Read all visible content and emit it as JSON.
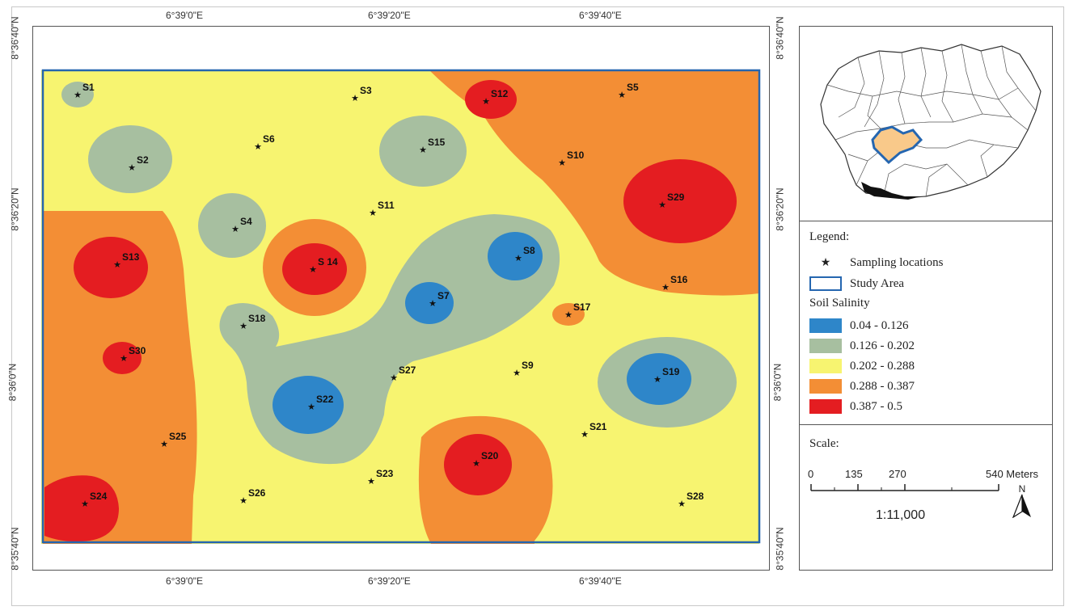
{
  "axes": {
    "top": [
      "6°39'0\"E",
      "6°39'20\"E",
      "6°39'40\"E"
    ],
    "bottom": [
      "6°39'0\"E",
      "6°39'20\"E",
      "6°39'40\"E"
    ],
    "left": [
      "8°36'40\"N",
      "8°36'20\"N",
      "8°36'0\"N",
      "8°35'40\"N"
    ],
    "right": [
      "8°36'40\"N",
      "8°36'20\"N",
      "8°36'0\"N",
      "8°35'40\"N"
    ]
  },
  "colors": {
    "class1": "#2e86c9",
    "class2": "#a7bfa0",
    "class3": "#f7f470",
    "class4": "#f38e35",
    "class5": "#e41d21",
    "study_area": "#2566b0",
    "nigeria_highlight": "#f9c98a"
  },
  "sampling_points": [
    {
      "id": "S1"
    },
    {
      "id": "S2"
    },
    {
      "id": "S3"
    },
    {
      "id": "S4"
    },
    {
      "id": "S5"
    },
    {
      "id": "S6"
    },
    {
      "id": "S7"
    },
    {
      "id": "S8"
    },
    {
      "id": "S9"
    },
    {
      "id": "S10"
    },
    {
      "id": "S11"
    },
    {
      "id": "S12"
    },
    {
      "id": "S13"
    },
    {
      "id": "S 14"
    },
    {
      "id": "S15"
    },
    {
      "id": "S16"
    },
    {
      "id": "S17"
    },
    {
      "id": "S18"
    },
    {
      "id": "S19"
    },
    {
      "id": "S20"
    },
    {
      "id": "S21"
    },
    {
      "id": "S22"
    },
    {
      "id": "S23"
    },
    {
      "id": "S24"
    },
    {
      "id": "S25"
    },
    {
      "id": "S26"
    },
    {
      "id": "S27"
    },
    {
      "id": "S28"
    },
    {
      "id": "S29"
    },
    {
      "id": "S30"
    }
  ],
  "legend": {
    "title": "Legend:",
    "sampling_label": "Sampling locations",
    "study_area_label": "Study Area",
    "salinity_title": "Soil Salinity",
    "classes": [
      {
        "label": "0.04 - 0.126",
        "color": "#2e86c9"
      },
      {
        "label": "0.126 - 0.202",
        "color": "#a7bfa0"
      },
      {
        "label": "0.202 - 0.288",
        "color": "#f7f470"
      },
      {
        "label": "0.288 - 0.387",
        "color": "#f38e35"
      },
      {
        "label": "0.387 - 0.5",
        "color": "#e41d21"
      }
    ]
  },
  "scale": {
    "title": "Scale:",
    "ticks": [
      "0",
      "135",
      "270",
      "540 Meters"
    ],
    "ratio": "1:11,000",
    "north": "N"
  }
}
